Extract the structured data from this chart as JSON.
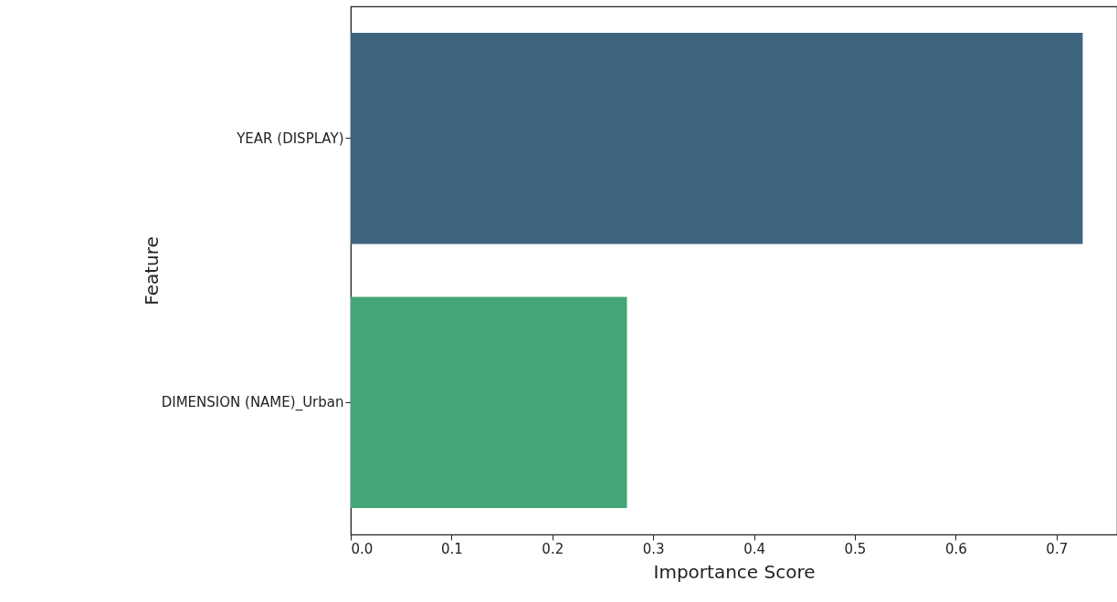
{
  "chart_data": {
    "type": "bar",
    "orientation": "horizontal",
    "xlabel": "Importance Score",
    "ylabel": "Feature",
    "categories": [
      "YEAR (DISPLAY)",
      "DIMENSION (NAME)_Urban"
    ],
    "values": [
      0.726,
      0.274
    ],
    "colors": [
      "#3e647f",
      "#44a676"
    ],
    "xlim": [
      0,
      0.76
    ],
    "xticks": [
      {
        "value": 0,
        "label": "0.0"
      },
      {
        "value": 0.1,
        "label": "0.1"
      },
      {
        "value": 0.2,
        "label": "0.2"
      },
      {
        "value": 0.3,
        "label": "0.3"
      },
      {
        "value": 0.4,
        "label": "0.4"
      },
      {
        "value": 0.5,
        "label": "0.5"
      },
      {
        "value": 0.6,
        "label": "0.6"
      },
      {
        "value": 0.7,
        "label": "0.7"
      }
    ],
    "grid": false
  }
}
